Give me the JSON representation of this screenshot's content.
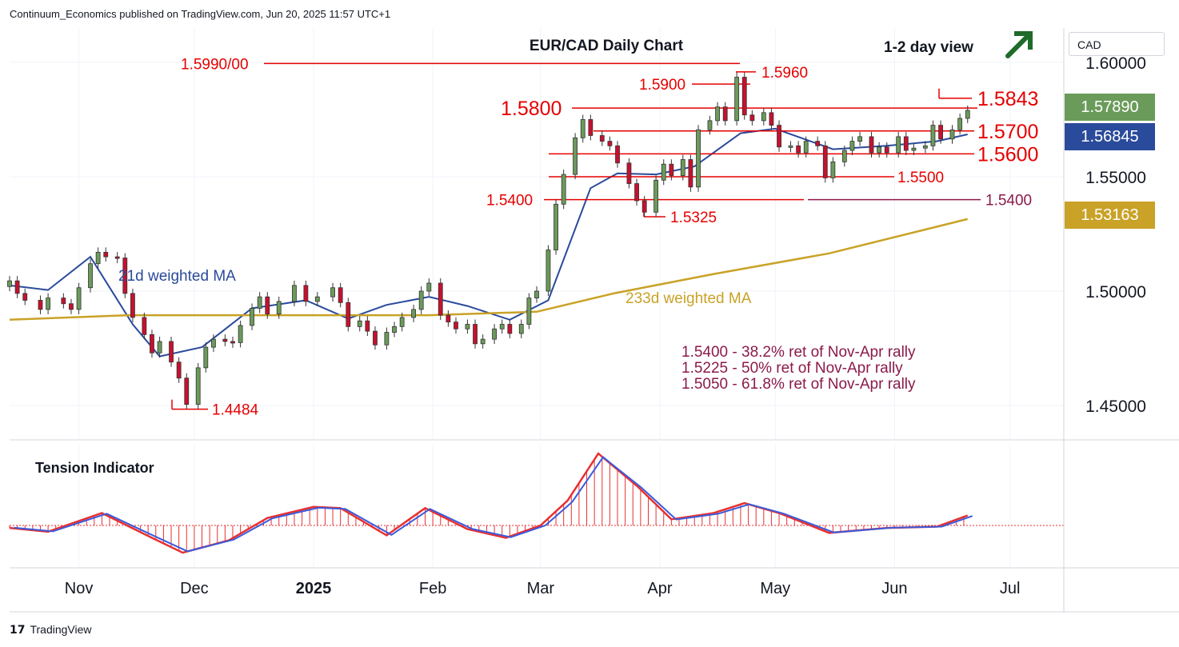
{
  "header": {
    "publisher": "Continuum_Economics published on TradingView.com, Jun 20, 2025 11:57 UTC+1"
  },
  "footer": {
    "logo_mark": "17",
    "logo_text": "TradingView"
  },
  "currency": "CAD",
  "colors": {
    "up": "#6b9b5a",
    "down": "#c8102e",
    "level": "#e60000",
    "fib": "#8b1a4a",
    "wma21": "#2a4a9b",
    "wma233": "#c9a227",
    "tension_red": "#e83030",
    "tension_blue": "#3b5bdb",
    "arrow": "#1f6b2a"
  },
  "badges": [
    {
      "label": "1.57890",
      "color": "#6b9b5a"
    },
    {
      "label": "1.56845",
      "color": "#2a4a9b"
    },
    {
      "label": "1.53163",
      "color": "#c9a227"
    }
  ],
  "chart_data": {
    "type": "candlestick",
    "title": "EUR/CAD Daily Chart",
    "subtitle": "1-2 day view",
    "bias": "bullish",
    "bias_icon": "up-right-arrow-icon",
    "y_ticks": [
      "1.60000",
      "1.55000",
      "1.50000",
      "1.45000"
    ],
    "y_tick_values": [
      1.6,
      1.55,
      1.5,
      1.45
    ],
    "ylim": [
      1.435,
      1.615
    ],
    "x_ticks": [
      "Nov",
      "Dec",
      "2025",
      "Feb",
      "Mar",
      "Apr",
      "May",
      "Jun",
      "Jul"
    ],
    "x_range": [
      "2024-10-14",
      "2025-07-15"
    ],
    "levels": [
      {
        "label": "1.5990/00",
        "value": 1.5995
      },
      {
        "label": "1.5960",
        "value": 1.5958
      },
      {
        "label": "1.5900",
        "value": 1.5905
      },
      {
        "label": "1.5843",
        "value": 1.5843
      },
      {
        "label": "1.5800",
        "value": 1.58
      },
      {
        "label": "1.5700",
        "value": 1.57
      },
      {
        "label": "1.5600",
        "value": 1.56
      },
      {
        "label": "1.5500",
        "value": 1.55
      },
      {
        "label": "1.5400",
        "value": 1.54
      },
      {
        "label": "1.5400",
        "value": 1.54
      },
      {
        "label": "1.5325",
        "value": 1.5325
      },
      {
        "label": "1.4484",
        "value": 1.4484
      }
    ],
    "annotations": [
      "1.5400 - 38.2% ret of Nov-Apr rally",
      "1.5225 - 50% ret of Nov-Apr rally",
      "1.5050 - 61.8% ret of Nov-Apr rally"
    ],
    "series": [
      {
        "name": "21d weighted MA",
        "points": [
          [
            "2024-10-14",
            1.5025
          ],
          [
            "2024-10-24",
            1.5005
          ],
          [
            "2024-11-04",
            1.515
          ],
          [
            "2024-11-15",
            1.4855
          ],
          [
            "2024-11-22",
            1.4715
          ],
          [
            "2024-12-03",
            1.4755
          ],
          [
            "2024-12-16",
            1.4925
          ],
          [
            "2024-12-30",
            1.496
          ],
          [
            "2025-01-10",
            1.488
          ],
          [
            "2025-01-20",
            1.494
          ],
          [
            "2025-01-31",
            1.4975
          ],
          [
            "2025-02-10",
            1.4935
          ],
          [
            "2025-02-21",
            1.4875
          ],
          [
            "2025-03-03",
            1.496
          ],
          [
            "2025-03-14",
            1.545
          ],
          [
            "2025-03-21",
            1.5515
          ],
          [
            "2025-03-31",
            1.551
          ],
          [
            "2025-04-10",
            1.5545
          ],
          [
            "2025-04-22",
            1.569
          ],
          [
            "2025-05-01",
            1.571
          ],
          [
            "2025-05-16",
            1.562
          ],
          [
            "2025-05-30",
            1.5635
          ],
          [
            "2025-06-12",
            1.5655
          ],
          [
            "2025-06-20",
            1.5685
          ]
        ]
      },
      {
        "name": "233d weighted MA",
        "points": [
          [
            "2024-10-14",
            1.4875
          ],
          [
            "2024-11-14",
            1.4895
          ],
          [
            "2024-12-16",
            1.4895
          ],
          [
            "2025-01-31",
            1.4895
          ],
          [
            "2025-02-28",
            1.491
          ],
          [
            "2025-03-20",
            1.499
          ],
          [
            "2025-04-15",
            1.5075
          ],
          [
            "2025-05-15",
            1.5165
          ],
          [
            "2025-06-20",
            1.5315
          ]
        ]
      }
    ],
    "candles": [
      [
        "2024-10-14",
        1.502,
        1.5045
      ],
      [
        "2024-10-16",
        1.5045,
        1.499
      ],
      [
        "2024-10-18",
        1.499,
        1.496
      ],
      [
        "2024-10-22",
        1.496,
        1.492
      ],
      [
        "2024-10-24",
        1.492,
        1.497
      ],
      [
        "2024-10-28",
        1.497,
        1.4945
      ],
      [
        "2024-10-30",
        1.4945,
        1.492
      ],
      [
        "2024-11-01",
        1.492,
        1.5015
      ],
      [
        "2024-11-04",
        1.5015,
        1.512
      ],
      [
        "2024-11-06",
        1.512,
        1.517
      ],
      [
        "2024-11-08",
        1.517,
        1.515
      ],
      [
        "2024-11-11",
        1.515,
        1.5145
      ],
      [
        "2024-11-13",
        1.5145,
        1.499
      ],
      [
        "2024-11-15",
        1.499,
        1.4885
      ],
      [
        "2024-11-18",
        1.4885,
        1.481
      ],
      [
        "2024-11-20",
        1.481,
        1.473
      ],
      [
        "2024-11-22",
        1.473,
        1.478
      ],
      [
        "2024-11-25",
        1.478,
        1.469
      ],
      [
        "2024-11-27",
        1.469,
        1.462
      ],
      [
        "2024-11-29",
        1.462,
        1.4505
      ],
      [
        "2024-12-02",
        1.4505,
        1.4665
      ],
      [
        "2024-12-04",
        1.4665,
        1.4755
      ],
      [
        "2024-12-06",
        1.4755,
        1.479
      ],
      [
        "2024-12-09",
        1.479,
        1.478
      ],
      [
        "2024-12-11",
        1.478,
        1.4775
      ],
      [
        "2024-12-13",
        1.4775,
        1.485
      ],
      [
        "2024-12-16",
        1.485,
        1.4925
      ],
      [
        "2024-12-18",
        1.4925,
        1.4975
      ],
      [
        "2024-12-20",
        1.4975,
        1.49
      ],
      [
        "2024-12-23",
        1.49,
        1.4955
      ],
      [
        "2024-12-27",
        1.4955,
        1.5025
      ],
      [
        "2024-12-30",
        1.5025,
        1.4955
      ],
      [
        "2025-01-02",
        1.4955,
        1.4975
      ],
      [
        "2025-01-06",
        1.4975,
        1.5015
      ],
      [
        "2025-01-08",
        1.5015,
        1.495
      ],
      [
        "2025-01-10",
        1.495,
        1.4845
      ],
      [
        "2025-01-13",
        1.4845,
        1.487
      ],
      [
        "2025-01-15",
        1.487,
        1.4825
      ],
      [
        "2025-01-17",
        1.4825,
        1.4765
      ],
      [
        "2025-01-20",
        1.4765,
        1.482
      ],
      [
        "2025-01-22",
        1.482,
        1.4845
      ],
      [
        "2025-01-24",
        1.4845,
        1.4885
      ],
      [
        "2025-01-27",
        1.4885,
        1.492
      ],
      [
        "2025-01-29",
        1.492,
        1.5
      ],
      [
        "2025-01-31",
        1.5,
        1.5035
      ],
      [
        "2025-02-03",
        1.5035,
        1.4895
      ],
      [
        "2025-02-05",
        1.4895,
        1.4865
      ],
      [
        "2025-02-07",
        1.4865,
        1.4835
      ],
      [
        "2025-02-10",
        1.4835,
        1.4855
      ],
      [
        "2025-02-12",
        1.4855,
        1.477
      ],
      [
        "2025-02-14",
        1.477,
        1.479
      ],
      [
        "2025-02-17",
        1.479,
        1.4835
      ],
      [
        "2025-02-19",
        1.4835,
        1.4855
      ],
      [
        "2025-02-21",
        1.4855,
        1.4815
      ],
      [
        "2025-02-24",
        1.4815,
        1.4855
      ],
      [
        "2025-02-26",
        1.4855,
        1.497
      ],
      [
        "2025-02-28",
        1.497,
        1.5
      ],
      [
        "2025-03-03",
        1.5,
        1.518
      ],
      [
        "2025-03-05",
        1.518,
        1.538
      ],
      [
        "2025-03-07",
        1.538,
        1.551
      ],
      [
        "2025-03-10",
        1.551,
        1.567
      ],
      [
        "2025-03-12",
        1.567,
        1.575
      ],
      [
        "2025-03-14",
        1.575,
        1.568
      ],
      [
        "2025-03-17",
        1.568,
        1.5655
      ],
      [
        "2025-03-19",
        1.5655,
        1.5635
      ],
      [
        "2025-03-21",
        1.5635,
        1.556
      ],
      [
        "2025-03-24",
        1.556,
        1.547
      ],
      [
        "2025-03-26",
        1.547,
        1.5395
      ],
      [
        "2025-03-28",
        1.5395,
        1.5345
      ],
      [
        "2025-03-31",
        1.5345,
        1.5485
      ],
      [
        "2025-04-02",
        1.5485,
        1.5555
      ],
      [
        "2025-04-04",
        1.5555,
        1.5505
      ],
      [
        "2025-04-07",
        1.5505,
        1.5575
      ],
      [
        "2025-04-09",
        1.5575,
        1.5455
      ],
      [
        "2025-04-11",
        1.5455,
        1.5705
      ],
      [
        "2025-04-14",
        1.5705,
        1.5745
      ],
      [
        "2025-04-16",
        1.5745,
        1.5805
      ],
      [
        "2025-04-18",
        1.5805,
        1.5745
      ],
      [
        "2025-04-21",
        1.5745,
        1.5935
      ],
      [
        "2025-04-23",
        1.5935,
        1.577
      ],
      [
        "2025-04-25",
        1.577,
        1.5745
      ],
      [
        "2025-04-28",
        1.5745,
        1.578
      ],
      [
        "2025-04-30",
        1.578,
        1.5725
      ],
      [
        "2025-05-02",
        1.5725,
        1.563
      ],
      [
        "2025-05-05",
        1.563,
        1.5635
      ],
      [
        "2025-05-07",
        1.5635,
        1.5605
      ],
      [
        "2025-05-09",
        1.5605,
        1.5655
      ],
      [
        "2025-05-12",
        1.5655,
        1.5635
      ],
      [
        "2025-05-14",
        1.5635,
        1.5495
      ],
      [
        "2025-05-16",
        1.5495,
        1.5565
      ],
      [
        "2025-05-19",
        1.5565,
        1.5615
      ],
      [
        "2025-05-21",
        1.5615,
        1.5655
      ],
      [
        "2025-05-23",
        1.5655,
        1.5675
      ],
      [
        "2025-05-26",
        1.5675,
        1.5605
      ],
      [
        "2025-05-28",
        1.5605,
        1.563
      ],
      [
        "2025-05-30",
        1.563,
        1.5605
      ],
      [
        "2025-06-02",
        1.5605,
        1.5675
      ],
      [
        "2025-06-04",
        1.5675,
        1.5615
      ],
      [
        "2025-06-06",
        1.5615,
        1.5625
      ],
      [
        "2025-06-09",
        1.5625,
        1.5635
      ],
      [
        "2025-06-11",
        1.5635,
        1.5725
      ],
      [
        "2025-06-13",
        1.5725,
        1.5665
      ],
      [
        "2025-06-16",
        1.5665,
        1.5705
      ],
      [
        "2025-06-18",
        1.5705,
        1.5755
      ],
      [
        "2025-06-20",
        1.5755,
        1.579
      ]
    ],
    "tension": {
      "name": "Tension Indicator",
      "points": [
        [
          "2024-10-14",
          -0.1
        ],
        [
          "2024-10-24",
          -0.25
        ],
        [
          "2024-11-07",
          0.5
        ],
        [
          "2024-11-20",
          -0.5
        ],
        [
          "2024-11-28",
          -1.1
        ],
        [
          "2024-12-10",
          -0.6
        ],
        [
          "2024-12-20",
          0.3
        ],
        [
          "2025-01-01",
          0.75
        ],
        [
          "2025-01-08",
          0.7
        ],
        [
          "2025-01-20",
          -0.4
        ],
        [
          "2025-01-30",
          0.7
        ],
        [
          "2025-02-10",
          -0.15
        ],
        [
          "2025-02-20",
          -0.5
        ],
        [
          "2025-03-01",
          0.0
        ],
        [
          "2025-03-08",
          1.0
        ],
        [
          "2025-03-16",
          2.9
        ],
        [
          "2025-03-26",
          1.6
        ],
        [
          "2025-04-04",
          0.25
        ],
        [
          "2025-04-15",
          0.5
        ],
        [
          "2025-04-23",
          0.9
        ],
        [
          "2025-05-02",
          0.5
        ],
        [
          "2025-05-15",
          -0.3
        ],
        [
          "2025-05-30",
          -0.1
        ],
        [
          "2025-06-12",
          -0.05
        ],
        [
          "2025-06-20",
          0.4
        ]
      ]
    }
  }
}
